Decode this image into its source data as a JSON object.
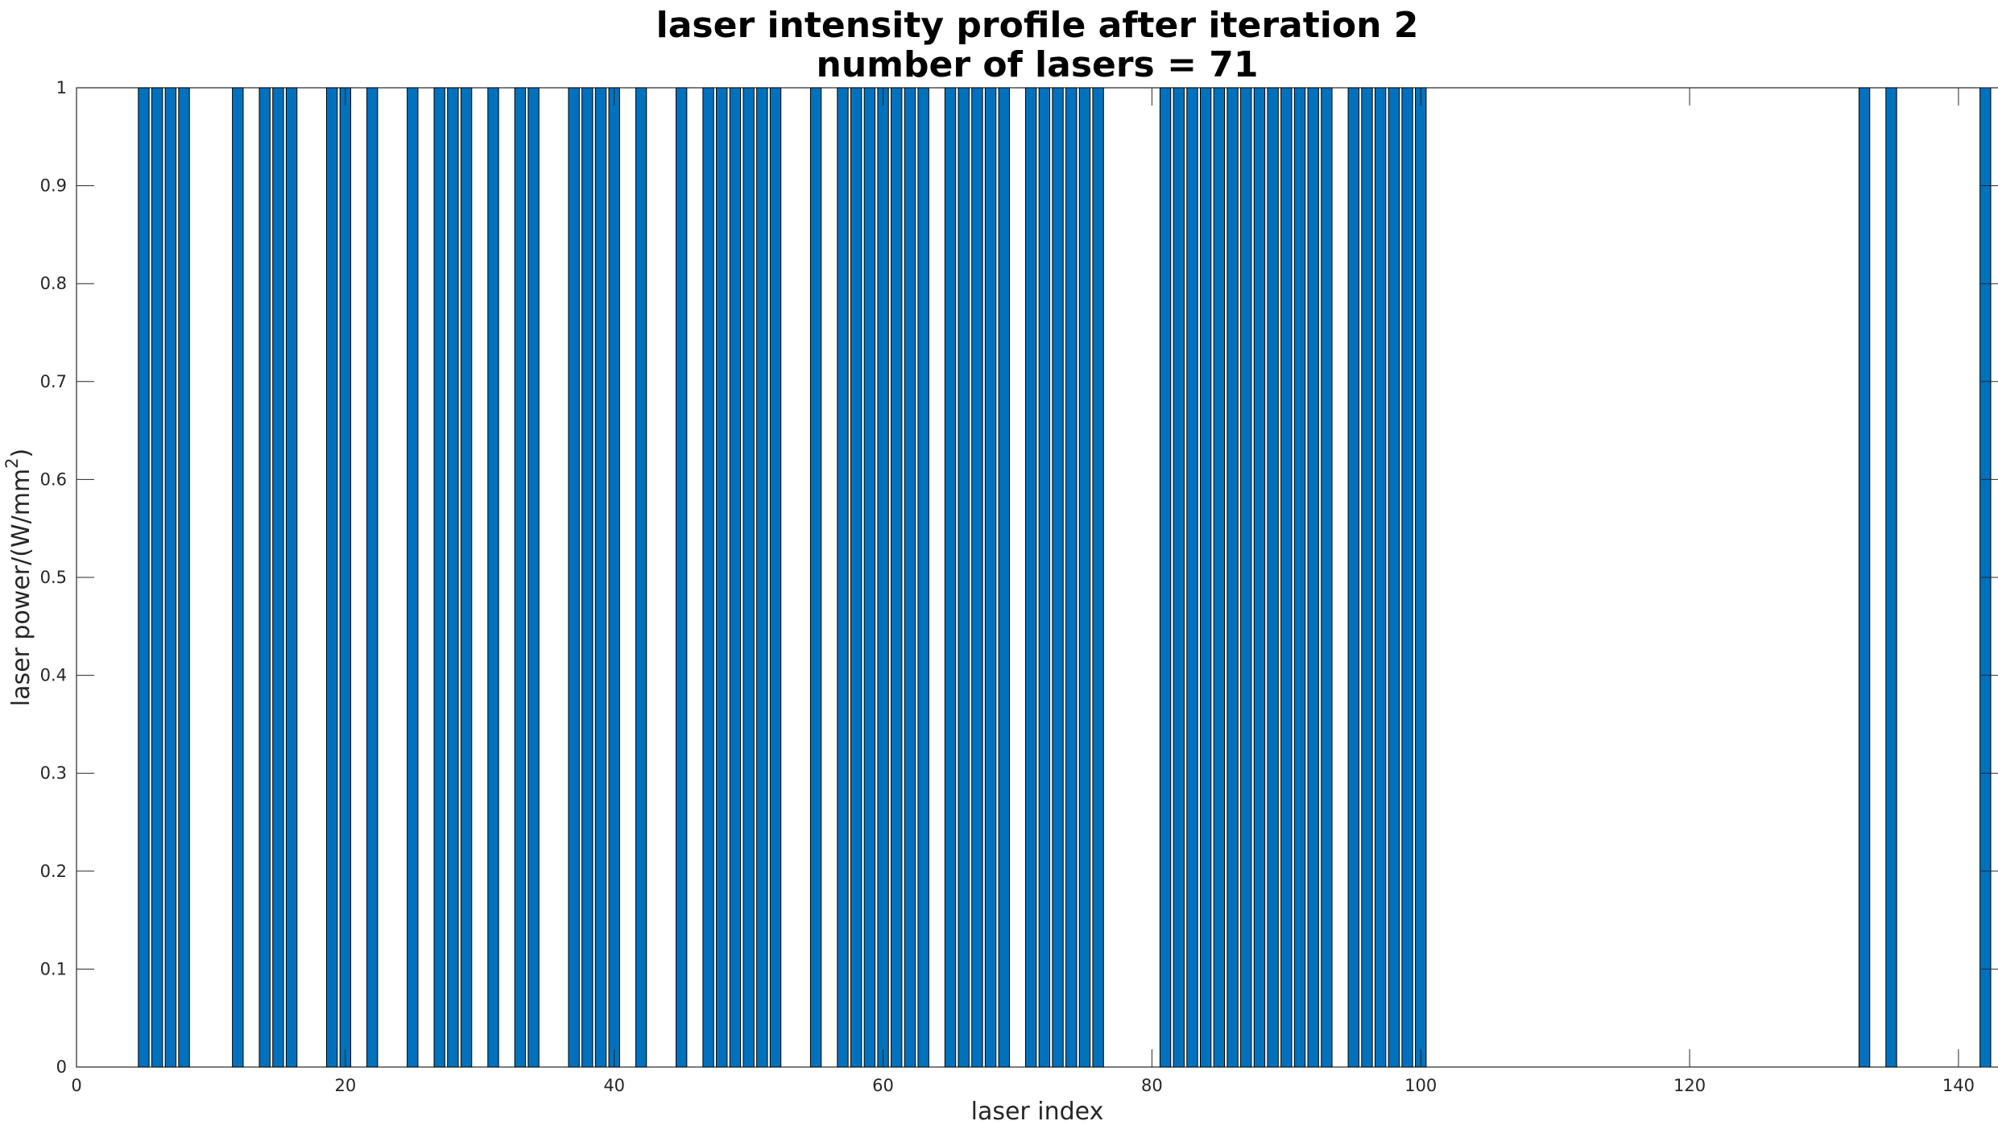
{
  "chart_data": {
    "type": "bar",
    "title": [
      "laser intensity profile after iteration 2",
      "number of lasers = 71"
    ],
    "xlabel": "laser index",
    "ylabel": {
      "base": "laser power/(W/mm",
      "superscript": "2",
      "suffix": ")"
    },
    "xlim": [
      0,
      143
    ],
    "ylim": [
      0,
      1
    ],
    "xticks": [
      0,
      20,
      40,
      60,
      80,
      100,
      120,
      140
    ],
    "yticks": [
      0,
      0.1,
      0.2,
      0.3,
      0.4,
      0.5,
      0.6,
      0.7,
      0.8,
      0.9,
      1
    ],
    "bar_color": "#0072BD",
    "bar_edge_color": "#000000",
    "x": [
      1,
      2,
      3,
      4,
      5,
      6,
      7,
      8,
      9,
      10,
      11,
      12,
      13,
      14,
      15,
      16,
      17,
      18,
      19,
      20,
      21,
      22,
      23,
      24,
      25,
      26,
      27,
      28,
      29,
      30,
      31,
      32,
      33,
      34,
      35,
      36,
      37,
      38,
      39,
      40,
      41,
      42,
      43,
      44,
      45,
      46,
      47,
      48,
      49,
      50,
      51,
      52,
      53,
      54,
      55,
      56,
      57,
      58,
      59,
      60,
      61,
      62,
      63,
      64,
      65,
      66,
      67,
      68,
      69,
      70,
      71,
      72,
      73,
      74,
      75,
      76,
      77,
      78,
      79,
      80,
      81,
      82,
      83,
      84,
      85,
      86,
      87,
      88,
      89,
      90,
      91,
      92,
      93,
      94,
      95,
      96,
      97,
      98,
      99,
      100,
      101,
      102,
      103,
      104,
      105,
      106,
      107,
      108,
      109,
      110,
      111,
      112,
      113,
      114,
      115,
      116,
      117,
      118,
      119,
      120,
      121,
      122,
      123,
      124,
      125,
      126,
      127,
      128,
      129,
      130,
      131,
      132,
      133,
      134,
      135,
      136,
      137,
      138,
      139,
      140,
      141,
      142
    ],
    "values": [
      0,
      0,
      0,
      0,
      1,
      1,
      1,
      1,
      0,
      0,
      0,
      1,
      0,
      1,
      1,
      1,
      0,
      0,
      1,
      1,
      0,
      1,
      0,
      0,
      1,
      0,
      1,
      1,
      1,
      0,
      1,
      0,
      1,
      1,
      0,
      0,
      1,
      1,
      1,
      1,
      0,
      1,
      0,
      0,
      1,
      0,
      1,
      1,
      1,
      1,
      1,
      1,
      0,
      0,
      1,
      0,
      1,
      1,
      1,
      1,
      1,
      1,
      1,
      0,
      1,
      1,
      1,
      1,
      1,
      0,
      1,
      1,
      1,
      1,
      1,
      1,
      0,
      0,
      0,
      0,
      1,
      1,
      1,
      1,
      1,
      1,
      1,
      1,
      1,
      1,
      1,
      1,
      1,
      0,
      1,
      1,
      1,
      1,
      1,
      1,
      0,
      0,
      0,
      0,
      0,
      0,
      0,
      0,
      0,
      0,
      0,
      0,
      0,
      0,
      0,
      0,
      0,
      0,
      0,
      0,
      0,
      0,
      0,
      0,
      0,
      0,
      0,
      0,
      0,
      0,
      0,
      0,
      1,
      0,
      1,
      0,
      0,
      0,
      0,
      0,
      0,
      1
    ]
  }
}
